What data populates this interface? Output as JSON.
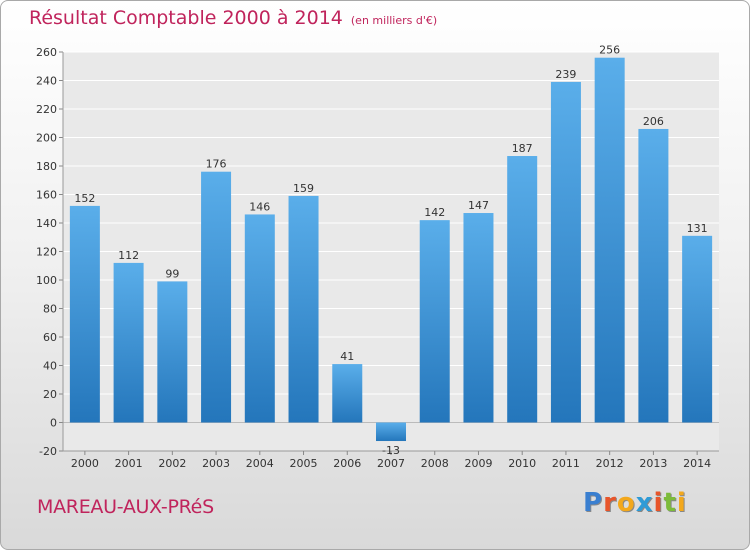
{
  "page": {
    "title": "Résultat Comptable 2000 à 2014",
    "unit": "(en milliers d'€)",
    "commune": "MAREAU-AUX-PRéS",
    "logo": {
      "letters": [
        "P",
        "r",
        "o",
        "x",
        "i",
        "t",
        "i"
      ],
      "colors": [
        "#3a7fd0",
        "#e8552a",
        "#f3a81c",
        "#2f9bd6",
        "#e8552a",
        "#7cbb3a",
        "#f3a81c"
      ]
    }
  },
  "chart_data": {
    "type": "bar",
    "title": "Résultat Comptable 2000 à 2014",
    "subtitle": "(en milliers d'€)",
    "categories": [
      "2000",
      "2001",
      "2002",
      "2003",
      "2004",
      "2005",
      "2006",
      "2007",
      "2008",
      "2009",
      "2010",
      "2011",
      "2012",
      "2013",
      "2014"
    ],
    "values": [
      152,
      112,
      99,
      176,
      146,
      159,
      41,
      -13,
      142,
      147,
      187,
      239,
      256,
      206,
      131
    ],
    "ylim": [
      -20,
      260
    ],
    "yticks": [
      -20,
      0,
      20,
      40,
      60,
      80,
      100,
      120,
      140,
      160,
      180,
      200,
      220,
      240,
      260
    ],
    "grid": true,
    "bar_color": "#3d94dc",
    "bar_color_dark": "#2b7dc4"
  }
}
